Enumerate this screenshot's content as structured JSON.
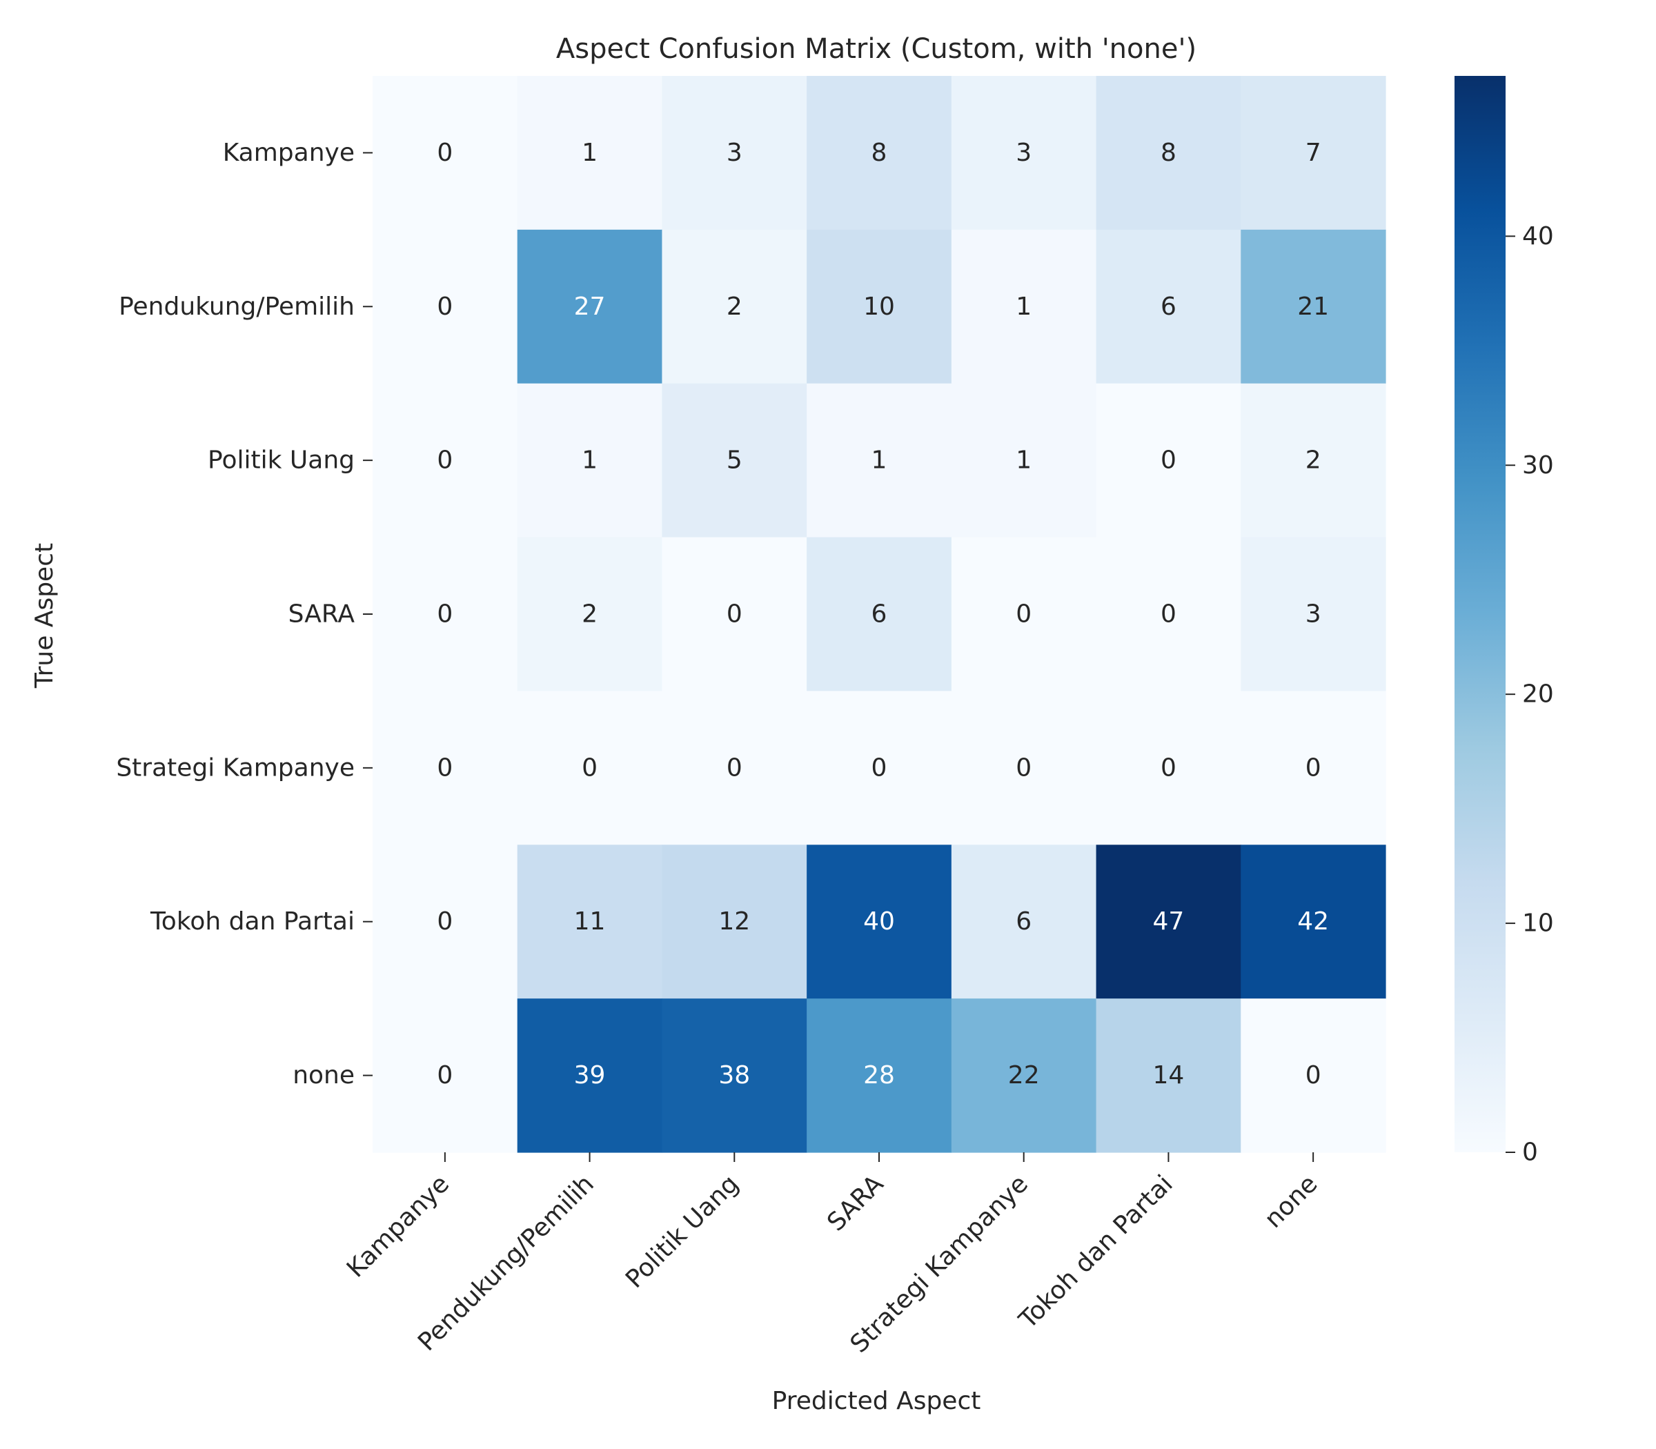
{
  "chart_data": {
    "type": "heatmap",
    "title": "Aspect Confusion Matrix (Custom, with 'none')",
    "xlabel": "Predicted Aspect",
    "ylabel": "True Aspect",
    "x_categories": [
      "Kampanye",
      "Pendukung/Pemilih",
      "Politik Uang",
      "SARA",
      "Strategi Kampanye",
      "Tokoh dan Partai",
      "none"
    ],
    "y_categories": [
      "Kampanye",
      "Pendukung/Pemilih",
      "Politik Uang",
      "SARA",
      "Strategi Kampanye",
      "Tokoh dan Partai",
      "none"
    ],
    "values": [
      [
        0,
        1,
        3,
        8,
        3,
        8,
        7
      ],
      [
        0,
        27,
        2,
        10,
        1,
        6,
        21
      ],
      [
        0,
        1,
        5,
        1,
        1,
        0,
        2
      ],
      [
        0,
        2,
        0,
        6,
        0,
        0,
        3
      ],
      [
        0,
        0,
        0,
        0,
        0,
        0,
        0
      ],
      [
        0,
        11,
        12,
        40,
        6,
        47,
        42
      ],
      [
        0,
        39,
        38,
        28,
        22,
        14,
        0
      ]
    ],
    "colorbar": {
      "colormap": "Blues",
      "range": [
        0,
        47
      ],
      "ticks": [
        0,
        10,
        20,
        30,
        40
      ]
    },
    "annotations": true,
    "grid": false
  }
}
